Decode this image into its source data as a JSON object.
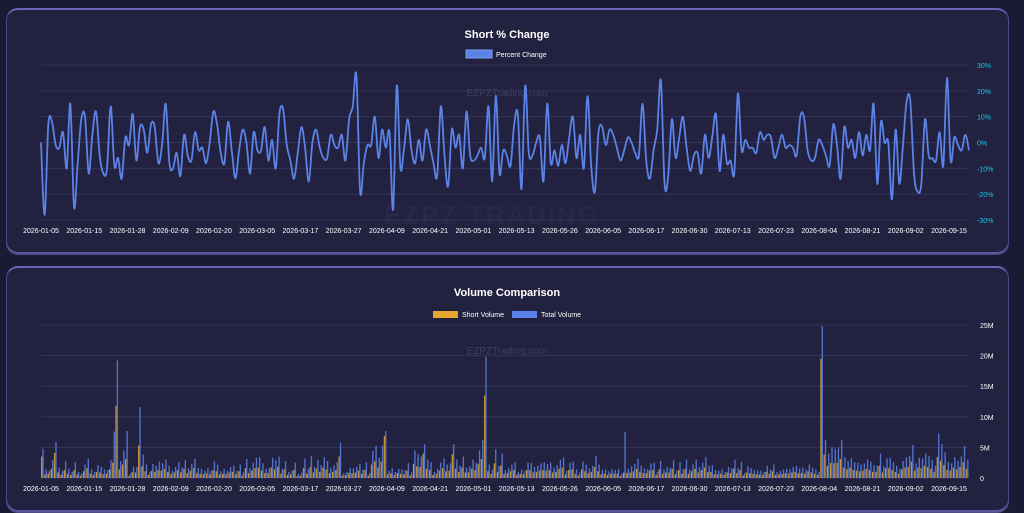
{
  "watermark_small": "EZPZTrading.com",
  "watermark_big": "EZPZ TRADING",
  "colors": {
    "percent_line": "#5b82e6",
    "short_volume": "#e3a72f",
    "total_volume": "#5b82e6",
    "pct_axis": "#22c7e6"
  },
  "chart_data": [
    {
      "type": "line",
      "title": "Short % Change",
      "series": [
        {
          "name": "Percent Change",
          "values": [
            0,
            -28,
            7,
            8,
            -1,
            -2,
            4,
            -10,
            15,
            -25,
            -8,
            9,
            10,
            -12,
            3,
            12,
            -5,
            -12,
            -10,
            14,
            -9,
            -6,
            -14,
            2,
            -1,
            11,
            -7,
            6,
            5,
            -4,
            7,
            6,
            -8,
            -1,
            15,
            -8,
            -10,
            -4,
            -13,
            3,
            -5,
            -7,
            4,
            -3,
            -2,
            -8,
            0,
            12,
            7,
            -4,
            -8,
            8,
            -3,
            -14,
            -3,
            5,
            0,
            -12,
            4,
            -3,
            -3,
            6,
            -7,
            1,
            -10,
            11,
            13,
            -1,
            -7,
            -14,
            -4,
            6,
            -2,
            -15,
            0,
            5,
            -2,
            -6,
            -6,
            3,
            -1,
            -2,
            3,
            -7,
            9,
            14,
            26,
            -19,
            -8,
            -1,
            -1,
            10,
            -6,
            5,
            -2,
            4,
            -26,
            22,
            -10,
            -2,
            9,
            -3,
            -8,
            1,
            -7,
            5,
            -1,
            -8,
            -13,
            14,
            -5,
            -17,
            5,
            -2,
            3,
            -10,
            12,
            -5,
            -7,
            -5,
            -2,
            -6,
            14,
            -15,
            18,
            -12,
            -3,
            -5,
            -9,
            7,
            11,
            -18,
            22,
            -4,
            -5,
            0,
            2,
            -15,
            15,
            -8,
            -3,
            -9,
            -1,
            -8,
            2,
            10,
            -6,
            3,
            -10,
            18,
            -9,
            -19,
            4,
            6,
            -1,
            5,
            3,
            -2,
            -7,
            -3,
            2,
            0,
            -4,
            -5,
            15,
            -7,
            -14,
            -3,
            5,
            24,
            -16,
            -13,
            9,
            -6,
            2,
            10,
            -2,
            -11,
            -5,
            -4,
            -12,
            3,
            -6,
            2,
            11,
            -11,
            3,
            -8,
            -7,
            -12,
            19,
            -3,
            1,
            -2,
            -2,
            -4,
            4,
            1,
            3,
            2,
            -6,
            -2,
            3,
            -2,
            -1,
            -2,
            -5,
            10,
            10,
            -3,
            -7,
            -6,
            1,
            -1,
            -5,
            -9,
            7,
            -1,
            -14,
            6,
            -2,
            1,
            -6,
            4,
            -5,
            3,
            -3,
            15,
            -16,
            8,
            0,
            0,
            -22,
            5,
            -16,
            -1,
            16,
            16,
            -12,
            -19,
            -16,
            9,
            -5,
            -6,
            -7,
            4,
            -9,
            25,
            -7,
            2,
            -1,
            -3,
            3,
            -3
          ]
        }
      ],
      "x_ticks": [
        "2026-01-05",
        "2026-01-15",
        "2026-01-28",
        "2026-02-09",
        "2026-02-20",
        "2026-03-05",
        "2026-03-17",
        "2026-03-27",
        "2026-04-09",
        "2026-04-21",
        "2026-05-01",
        "2026-05-13",
        "2026-05-26",
        "2026-06-05",
        "2026-06-17",
        "2026-06-30",
        "2026-07-13",
        "2026-07-23",
        "2026-08-04",
        "2026-08-21",
        "2026-09-02",
        "2026-09-15"
      ],
      "y_ticks": [
        "30%",
        "20%",
        "10%",
        "0%",
        "-10%",
        "-20%",
        "-30%"
      ],
      "ylim": [
        -30,
        30
      ],
      "legend": "top-center",
      "grid": true
    },
    {
      "type": "bar",
      "title": "Volume Comparison",
      "series": [
        {
          "name": "Short Volume",
          "values": [
            3.5,
            0.6,
            0.8,
            1.5,
            4.1,
            0.9,
            0.5,
            1.3,
            0.7,
            0.5,
            1.3,
            0.6,
            0.4,
            1.1,
            1.6,
            0.7,
            0.5,
            1.0,
            0.9,
            0.6,
            0.7,
            1.4,
            2.5,
            11.8,
            1.4,
            2.2,
            3.1,
            0.3,
            1.0,
            0.9,
            5.3,
            1.9,
            1.1,
            0.5,
            1.2,
            1.0,
            1.3,
            1.2,
            1.5,
            1.0,
            0.6,
            0.9,
            1.3,
            0.9,
            1.5,
            0.8,
            1.2,
            1.6,
            0.8,
            0.7,
            0.6,
            0.8,
            0.6,
            1.3,
            1.1,
            0.6,
            0.7,
            0.6,
            0.9,
            1.0,
            0.6,
            1.1,
            0.4,
            1.6,
            0.8,
            1.2,
            1.6,
            1.7,
            1.2,
            0.8,
            0.8,
            1.7,
            1.4,
            1.8,
            0.7,
            1.4,
            0.5,
            0.6,
            1.3,
            0.3,
            0.4,
            1.6,
            0.7,
            1.8,
            0.9,
            1.5,
            1.0,
            1.7,
            1.4,
            0.8,
            1.0,
            1.3,
            3.5,
            0.4,
            0.5,
            0.8,
            0.8,
            0.9,
            1.2,
            0.7,
            1.3,
            0.4,
            2.2,
            2.7,
            1.7,
            2.7,
            6.9,
            0.6,
            0.8,
            0.5,
            0.8,
            0.7,
            0.6,
            1.2,
            0.4,
            2.3,
            1.9,
            1.8,
            4.0,
            1.5,
            1.3,
            0.5,
            0.7,
            1.2,
            1.6,
            1.1,
            1.2,
            3.9,
            1.5,
            1.0,
            1.7,
            0.9,
            0.9,
            1.5,
            1.3,
            2.3,
            3.1,
            13.5,
            1.1,
            0.7,
            2.4,
            1.0,
            2.0,
            0.7,
            0.8,
            1.1,
            1.3,
            0.5,
            0.7,
            0.6,
            1.3,
            1.3,
            0.9,
            1.0,
            1.2,
            1.3,
            1.2,
            1.3,
            0.9,
            1.0,
            1.5,
            1.7,
            0.6,
            1.3,
            1.4,
            0.7,
            0.4,
            1.4,
            1.1,
            0.8,
            1.0,
            1.8,
            1.1,
            0.6,
            0.7,
            0.5,
            0.7,
            0.7,
            0.7,
            0.3,
            0.9,
            0.8,
            0.9,
            1.1,
            1.5,
            1.0,
            0.8,
            0.8,
            1.2,
            1.3,
            0.5,
            1.4,
            0.7,
            0.9,
            0.9,
            1.5,
            0.6,
            1.3,
            0.7,
            1.5,
            0.7,
            1.1,
            1.5,
            0.9,
            1.3,
            1.7,
            1.0,
            1.0,
            0.6,
            0.6,
            0.7,
            0.5,
            0.9,
            0.8,
            1.5,
            0.8,
            1.3,
            0.4,
            0.9,
            0.8,
            0.7,
            0.6,
            0.6,
            0.5,
            1.0,
            0.7,
            1.1,
            0.5,
            0.6,
            0.7,
            0.8,
            0.7,
            0.9,
            1.0,
            0.8,
            0.8,
            0.7,
            1.1,
            0.9,
            0.7,
            0.5,
            19.5,
            3.8,
            2.0,
            2.5,
            2.4,
            2.5,
            3.1,
            1.7,
            1.4,
            1.7,
            1.3,
            1.2,
            1.1,
            1.2,
            1.5,
            1.3,
            1.0,
            1.0,
            2.0,
            0.9,
            1.6,
            1.6,
            1.3,
            1.0,
            0.7,
            1.4,
            1.7,
            1.8,
            2.7,
            1.2,
            1.7,
            1.6,
            2.0,
            1.8,
            1.5,
            1.0,
            3.4,
            2.8,
            2.1,
            1.3,
            1.2,
            1.7,
            1.4,
            1.8,
            2.6,
            1.5
          ]
        },
        {
          "name": "Total Volume",
          "values": [
            4.8,
            1.4,
            1.2,
            3.0,
            5.9,
            1.7,
            1.1,
            2.7,
            1.5,
            1.0,
            2.6,
            1.0,
            0.8,
            2.2,
            3.2,
            1.4,
            1.0,
            2.1,
            1.8,
            1.4,
            1.3,
            2.9,
            7.6,
            19.2,
            2.8,
            4.5,
            7.7,
            0.7,
            1.9,
            1.8,
            11.6,
            3.8,
            2.2,
            1.0,
            2.3,
            2.0,
            2.7,
            2.4,
            3.0,
            2.0,
            1.2,
            1.8,
            2.6,
            1.7,
            2.9,
            1.6,
            2.3,
            3.1,
            1.6,
            1.5,
            1.2,
            1.6,
            1.2,
            2.7,
            2.2,
            1.1,
            1.5,
            1.2,
            1.8,
            2.0,
            1.2,
            2.2,
            0.9,
            3.1,
            1.6,
            2.5,
            3.3,
            3.4,
            2.4,
            1.5,
            1.6,
            3.3,
            2.9,
            3.5,
            1.5,
            2.8,
            1.0,
            1.2,
            2.5,
            0.7,
            0.9,
            3.2,
            1.4,
            3.6,
            1.8,
            3.0,
            2.1,
            3.4,
            2.8,
            1.7,
            2.1,
            2.6,
            5.8,
            0.8,
            1.0,
            1.6,
            1.6,
            1.8,
            2.3,
            1.4,
            2.6,
            0.8,
            4.4,
            5.3,
            3.3,
            5.3,
            7.7,
            1.2,
            1.6,
            1.0,
            1.5,
            1.4,
            1.3,
            2.4,
            0.9,
            4.5,
            3.9,
            3.5,
            5.5,
            3.0,
            2.6,
            1.0,
            1.5,
            2.5,
            3.2,
            2.2,
            2.4,
            5.5,
            3.0,
            2.0,
            3.5,
            1.7,
            1.9,
            3.0,
            2.5,
            4.5,
            6.2,
            19.8,
            2.2,
            1.4,
            4.7,
            2.0,
            4.0,
            1.3,
            1.6,
            2.2,
            2.6,
            1.0,
            1.4,
            1.2,
            2.5,
            2.5,
            1.8,
            2.0,
            2.4,
            2.6,
            2.3,
            2.5,
            1.7,
            2.1,
            3.0,
            3.4,
            1.2,
            2.5,
            2.7,
            1.4,
            0.9,
            2.7,
            2.2,
            1.6,
            2.0,
            3.6,
            2.2,
            1.3,
            1.4,
            1.1,
            1.4,
            1.3,
            1.5,
            0.7,
            7.5,
            1.5,
            1.9,
            2.3,
            3.1,
            2.0,
            1.6,
            1.5,
            2.4,
            2.5,
            1.0,
            2.8,
            1.4,
            1.8,
            1.7,
            2.9,
            1.2,
            2.6,
            1.4,
            3.0,
            1.4,
            2.2,
            3.0,
            1.8,
            2.5,
            3.4,
            2.0,
            2.1,
            1.3,
            1.2,
            1.4,
            1.0,
            1.8,
            1.6,
            3.0,
            1.6,
            2.6,
            0.8,
            1.9,
            1.6,
            1.3,
            1.2,
            1.2,
            1.0,
            2.0,
            1.4,
            2.2,
            1.0,
            1.2,
            1.4,
            1.5,
            1.4,
            1.8,
            2.0,
            1.6,
            1.7,
            1.4,
            2.2,
            1.7,
            1.4,
            1.0,
            24.8,
            6.2,
            4.0,
            5.0,
            4.8,
            5.0,
            6.2,
            3.4,
            2.8,
            3.3,
            2.6,
            2.5,
            2.2,
            2.4,
            3.0,
            2.7,
            2.1,
            2.0,
            4.0,
            1.9,
            3.2,
            3.3,
            2.6,
            2.0,
            1.5,
            2.8,
            3.4,
            3.6,
            5.4,
            2.4,
            3.3,
            3.2,
            4.0,
            3.6,
            3.0,
            2.0,
            7.3,
            5.6,
            4.2,
            2.6,
            2.4,
            3.4,
            2.8,
            3.5,
            5.2,
            3.0
          ]
        }
      ],
      "x_ticks": [
        "2026-01-05",
        "2026-01-15",
        "2026-01-28",
        "2026-02-09",
        "2026-02-20",
        "2026-03-05",
        "2026-03-17",
        "2026-03-27",
        "2026-04-09",
        "2026-04-21",
        "2026-05-01",
        "2026-05-13",
        "2026-05-26",
        "2026-06-05",
        "2026-06-17",
        "2026-06-30",
        "2026-07-13",
        "2026-07-23",
        "2026-08-04",
        "2026-08-21",
        "2026-09-02",
        "2026-09-15"
      ],
      "y_ticks": [
        "25M",
        "20M",
        "15M",
        "10M",
        "5M",
        "0"
      ],
      "ylim": [
        0,
        25
      ],
      "unit": "M",
      "legend": "top-center",
      "grid": true
    }
  ]
}
